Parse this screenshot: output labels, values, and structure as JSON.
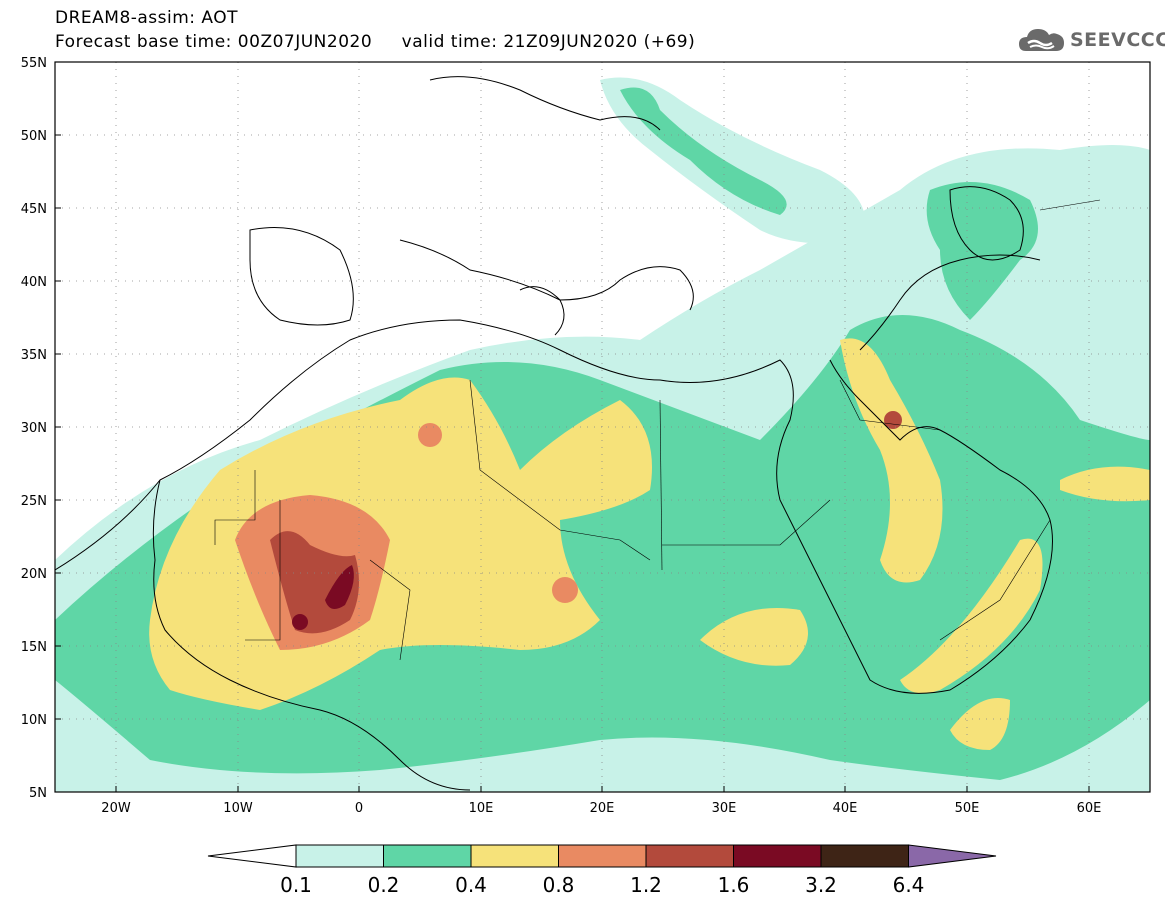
{
  "header": {
    "line1": "DREAM8-assim: AOT",
    "line2": "Forecast base time: 00Z07JUN2020     valid time: 21Z09JUN2020 (+69)"
  },
  "logo": {
    "text": "SEEVCCC",
    "icon": "cloud-icon"
  },
  "map": {
    "extent": {
      "lon": [
        -25,
        65
      ],
      "lat": [
        5,
        55
      ]
    },
    "lat_ticks": [
      "55N",
      "50N",
      "45N",
      "40N",
      "35N",
      "30N",
      "25N",
      "20N",
      "15N",
      "10N",
      "5N"
    ],
    "lon_ticks": [
      "20W",
      "10W",
      "0",
      "10E",
      "20E",
      "30E",
      "40E",
      "50E",
      "60E"
    ],
    "field": "Aerosol Optical Thickness"
  },
  "colorbar": {
    "labels": [
      "0.1",
      "0.2",
      "0.4",
      "0.8",
      "1.2",
      "1.6",
      "3.2",
      "6.4"
    ],
    "colors": [
      "#ffffff",
      "#c8f2e8",
      "#5fd6a6",
      "#f6e27a",
      "#e98a62",
      "#b34a3c",
      "#7a0a23",
      "#3e2416",
      "#8a68a8"
    ]
  }
}
